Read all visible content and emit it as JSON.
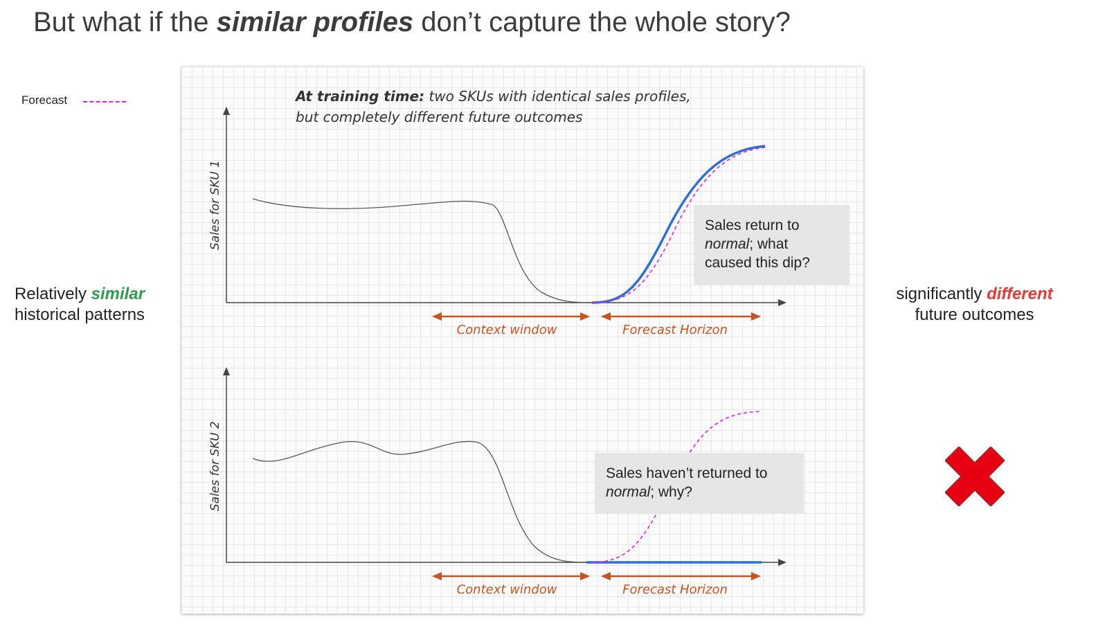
{
  "title": {
    "prefix": "But what if the ",
    "emphasis": "similar profiles",
    "suffix": " don’t capture the whole story?"
  },
  "legend": {
    "label": "Forecast",
    "color": "#e020e0"
  },
  "left_caption": {
    "word1": "Relatively ",
    "emphasis": "similar",
    "line2": "historical patterns",
    "emphasis_color": "#2e9c4f"
  },
  "right_caption": {
    "word1": "significantly ",
    "emphasis": "different",
    "line2": "future outcomes",
    "emphasis_color": "#e53935"
  },
  "panel": {
    "heading_bold": "At training time:",
    "heading_rest": " two SKUs with identical sales profiles,",
    "heading_line2": "but completely different future outcomes",
    "chart1": {
      "ylabel": "Sales for SKU 1",
      "context_label": "Context window",
      "horizon_label": "Forecast Horizon",
      "note_line1": "Sales return to",
      "note_italic": "normal",
      "note_rest": "; what",
      "note_line3": "caused this dip?"
    },
    "chart2": {
      "ylabel": "Sales for SKU 2",
      "context_label": "Context window",
      "horizon_label": "Forecast Horizon",
      "note_line1": "Sales haven’t returned to",
      "note_italic": "normal",
      "note_rest": "; why?"
    }
  },
  "colors": {
    "actual": "#2d6fd6",
    "history": "#555555",
    "arrow": "#c65321",
    "forecast": "#e020e0",
    "xmark": "#e60012"
  },
  "icons": {
    "xmark": "red-x-icon"
  }
}
